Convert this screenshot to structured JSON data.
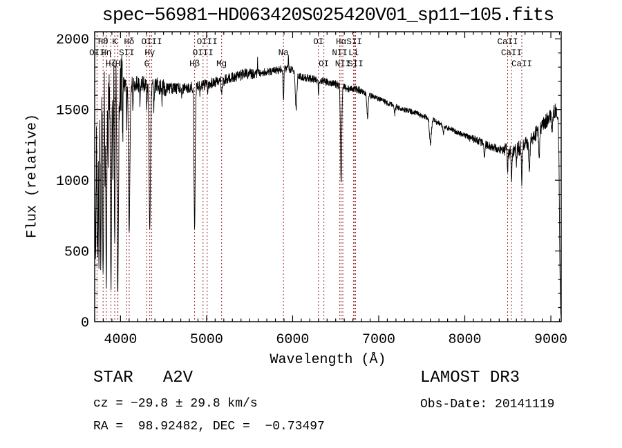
{
  "chart_data": {
    "type": "line",
    "title": "spec−56981−HD063420S025420V01_sp11−105.fits",
    "xlabel": "Wavelength (Å)",
    "ylabel": "Flux (relative)",
    "xlim": [
      3700,
      9120
    ],
    "ylim": [
      0,
      2050
    ],
    "x_major_ticks": [
      4000,
      5000,
      6000,
      7000,
      8000,
      9000
    ],
    "x_minor_step": 100,
    "y_major_ticks": [
      0,
      500,
      1000,
      1500,
      2000
    ],
    "y_minor_step": 100,
    "grid": false,
    "legend": "none",
    "axis_color": "#000000",
    "spectrum_color": "#000000",
    "line_marker_color": "#992525",
    "spectral_lines": [
      {
        "label": "Hθ",
        "wavelength": 3798,
        "row": 1
      },
      {
        "label": "K",
        "wavelength": 3933,
        "row": 1
      },
      {
        "label": "Hδ",
        "wavelength": 4101,
        "row": 1
      },
      {
        "label": "OIII",
        "wavelength": 4363,
        "row": 1
      },
      {
        "label": "OIII",
        "wavelength": 5007,
        "row": 1
      },
      {
        "label": "OI",
        "wavelength": 6300,
        "row": 1
      },
      {
        "label": "Hα",
        "wavelength": 6563,
        "row": 1
      },
      {
        "label": "SII",
        "wavelength": 6716,
        "row": 1
      },
      {
        "label": "CaII",
        "wavelength": 8498,
        "row": 1
      },
      {
        "label": "OII",
        "wavelength": 3727,
        "row": 2
      },
      {
        "label": "Hη",
        "wavelength": 3835,
        "row": 2
      },
      {
        "label": "SII",
        "wavelength": 4072,
        "row": 2
      },
      {
        "label": "Hγ",
        "wavelength": 4340,
        "row": 2
      },
      {
        "label": "OIII",
        "wavelength": 4959,
        "row": 2
      },
      {
        "label": "Na",
        "wavelength": 5893,
        "row": 2
      },
      {
        "label": "NII",
        "wavelength": 6548,
        "row": 2
      },
      {
        "label": "Li",
        "wavelength": 6708,
        "row": 2
      },
      {
        "label": "CaII",
        "wavelength": 8542,
        "row": 2
      },
      {
        "label": "Hζ",
        "wavelength": 3889,
        "row": 3
      },
      {
        "label": "H",
        "wavelength": 3968,
        "row": 3
      },
      {
        "label": "G",
        "wavelength": 4305,
        "row": 3
      },
      {
        "label": "Hβ",
        "wavelength": 4861,
        "row": 3
      },
      {
        "label": "Mg",
        "wavelength": 5175,
        "row": 3
      },
      {
        "label": "OI",
        "wavelength": 6363,
        "row": 3
      },
      {
        "label": "NII",
        "wavelength": 6583,
        "row": 3
      },
      {
        "label": "SII",
        "wavelength": 6731,
        "row": 3
      },
      {
        "label": "CaII",
        "wavelength": 8662,
        "row": 3
      }
    ],
    "extra_marker_wavelengths": [
      3970
    ],
    "continuum": [
      [
        3700,
        500
      ],
      [
        3715,
        1500
      ],
      [
        3740,
        1650
      ],
      [
        3800,
        1700
      ],
      [
        3900,
        1720
      ],
      [
        4000,
        1690
      ],
      [
        4100,
        1680
      ],
      [
        4250,
        1680
      ],
      [
        4400,
        1670
      ],
      [
        4550,
        1650
      ],
      [
        4700,
        1650
      ],
      [
        4861,
        1660
      ],
      [
        5000,
        1680
      ],
      [
        5175,
        1700
      ],
      [
        5300,
        1730
      ],
      [
        5450,
        1750
      ],
      [
        5600,
        1760
      ],
      [
        5750,
        1770
      ],
      [
        5900,
        1790
      ],
      [
        5990,
        1780
      ],
      [
        6100,
        1730
      ],
      [
        6200,
        1720
      ],
      [
        6350,
        1700
      ],
      [
        6500,
        1680
      ],
      [
        6563,
        1660
      ],
      [
        6650,
        1650
      ],
      [
        6760,
        1640
      ],
      [
        6900,
        1600
      ],
      [
        7050,
        1560
      ],
      [
        7200,
        1520
      ],
      [
        7350,
        1490
      ],
      [
        7500,
        1460
      ],
      [
        7650,
        1420
      ],
      [
        7800,
        1370
      ],
      [
        7950,
        1330
      ],
      [
        8100,
        1290
      ],
      [
        8250,
        1250
      ],
      [
        8400,
        1220
      ],
      [
        8520,
        1200
      ],
      [
        8650,
        1230
      ],
      [
        8780,
        1290
      ],
      [
        8900,
        1390
      ],
      [
        9000,
        1460
      ],
      [
        9060,
        1500
      ],
      [
        9085,
        1430
      ],
      [
        9095,
        1100
      ],
      [
        9105,
        400
      ],
      [
        9115,
        60
      ],
      [
        9120,
        40
      ]
    ],
    "absorption_lines": [
      [
        3712,
        500,
        4
      ],
      [
        3727,
        900,
        4
      ],
      [
        3735,
        650,
        4
      ],
      [
        3750,
        420,
        5
      ],
      [
        3771,
        400,
        5
      ],
      [
        3798,
        330,
        6
      ],
      [
        3820,
        1150,
        3
      ],
      [
        3835,
        260,
        6
      ],
      [
        3856,
        1150,
        3
      ],
      [
        3889,
        240,
        7
      ],
      [
        3912,
        1000,
        3
      ],
      [
        3933,
        500,
        4
      ],
      [
        3968,
        190,
        8
      ],
      [
        4026,
        1380,
        3
      ],
      [
        4072,
        1400,
        3
      ],
      [
        4101,
        620,
        8
      ],
      [
        4144,
        1480,
        3
      ],
      [
        4226,
        1500,
        3
      ],
      [
        4305,
        1530,
        4
      ],
      [
        4340,
        640,
        8
      ],
      [
        4388,
        1520,
        3
      ],
      [
        4481,
        1540,
        3
      ],
      [
        4713,
        1580,
        3
      ],
      [
        4861,
        650,
        7
      ],
      [
        4922,
        1600,
        3
      ],
      [
        5015,
        1620,
        3
      ],
      [
        5175,
        1590,
        5
      ],
      [
        5893,
        1570,
        5
      ],
      [
        6040,
        1500,
        9
      ],
      [
        6300,
        1600,
        4
      ],
      [
        6563,
        975,
        7
      ],
      [
        6870,
        1450,
        8
      ],
      [
        7186,
        1470,
        7
      ],
      [
        7600,
        1260,
        11
      ],
      [
        7750,
        1330,
        6
      ],
      [
        8227,
        1160,
        6
      ],
      [
        8498,
        1090,
        5
      ],
      [
        8542,
        1010,
        5
      ],
      [
        8600,
        1130,
        4
      ],
      [
        8662,
        995,
        5
      ],
      [
        8750,
        1040,
        6
      ],
      [
        8865,
        1190,
        6
      ],
      [
        9015,
        1320,
        5
      ]
    ],
    "emission_spikes": [
      [
        5593,
        110,
        2
      ],
      [
        5950,
        80,
        3
      ]
    ],
    "noise": {
      "seed": 20141119,
      "step": 2.5,
      "regions": [
        [
          3700,
          3805,
          300
        ],
        [
          3805,
          4030,
          220
        ],
        [
          4030,
          4530,
          60
        ],
        [
          4530,
          5600,
          40
        ],
        [
          5600,
          6800,
          28
        ],
        [
          6800,
          8050,
          20
        ],
        [
          8050,
          8460,
          30
        ],
        [
          8460,
          9095,
          55
        ],
        [
          9095,
          9121,
          25
        ]
      ]
    }
  },
  "annotations": {
    "class_line": "STAR   A2V",
    "cz_line": "cz = −29.8 ± 29.8 km/s",
    "radec_line": "RA =  98.92482, DEC =  −0.73497",
    "survey_line": "LAMOST DR3",
    "obsdate_line": "Obs-Date: 20141119"
  }
}
